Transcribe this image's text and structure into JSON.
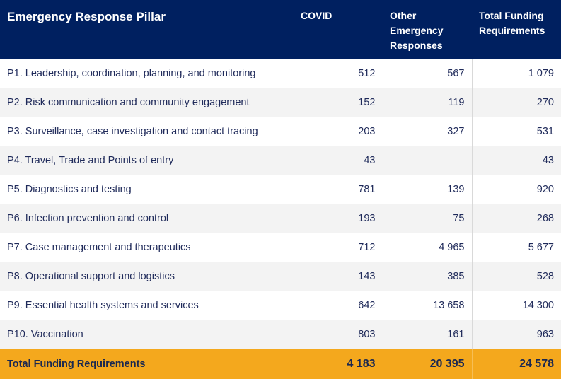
{
  "table": {
    "headers": [
      "Emergency Response Pillar",
      "COVID",
      "Other Emergency Responses",
      "Total Funding Requirements"
    ],
    "rows": [
      {
        "pillar": "P1. Leadership, coordination, planning, and monitoring",
        "covid": "512",
        "other": "567",
        "total": "1 079"
      },
      {
        "pillar": "P2. Risk communication and community engagement",
        "covid": "152",
        "other": "119",
        "total": "270"
      },
      {
        "pillar": "P3. Surveillance, case investigation and contact tracing",
        "covid": "203",
        "other": "327",
        "total": "531"
      },
      {
        "pillar": "P4. Travel, Trade and Points of entry",
        "covid": "43",
        "other": "",
        "total": "43"
      },
      {
        "pillar": "P5. Diagnostics and testing",
        "covid": "781",
        "other": "139",
        "total": "920"
      },
      {
        "pillar": "P6. Infection prevention and control",
        "covid": "193",
        "other": "75",
        "total": "268"
      },
      {
        "pillar": "P7. Case management and therapeutics",
        "covid": "712",
        "other": "4 965",
        "total": "5 677"
      },
      {
        "pillar": "P8. Operational support and logistics",
        "covid": "143",
        "other": "385",
        "total": "528"
      },
      {
        "pillar": "P9. Essential health systems and services",
        "covid": "642",
        "other": "13 658",
        "total": "14 300"
      },
      {
        "pillar": "P10. Vaccination",
        "covid": "803",
        "other": "161",
        "total": "963"
      }
    ],
    "footer": {
      "label": "Total Funding Requirements",
      "covid": "4 183",
      "other": "20 395",
      "total": "24 578"
    }
  },
  "colors": {
    "header_bg": "#002060",
    "footer_bg": "#f4a81d",
    "text": "#1f2a5a"
  }
}
